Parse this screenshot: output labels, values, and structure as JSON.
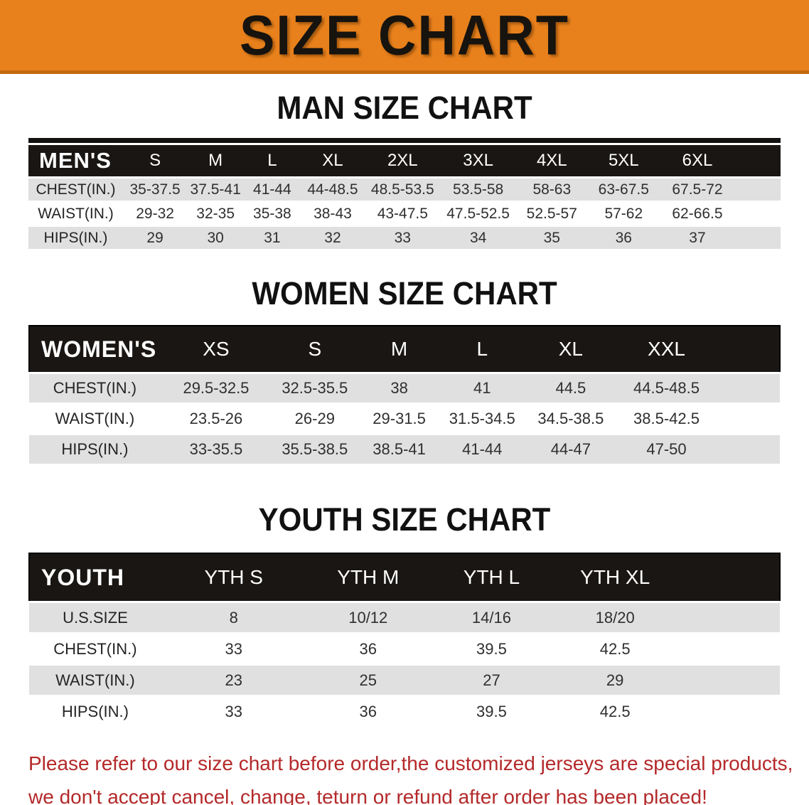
{
  "banner": {
    "title": "SIZE CHART",
    "bg_color": "#E8811C",
    "text_color": "#17130e"
  },
  "sections": [
    {
      "heading": "MAN SIZE CHART",
      "table": {
        "label": "MEN'S",
        "columns": [
          "S",
          "M",
          "L",
          "XL",
          "2XL",
          "3XL",
          "4XL",
          "5XL",
          "6XL"
        ],
        "rows": [
          {
            "label": "CHEST(IN.)",
            "values": [
              "35-37.5",
              "37.5-41",
              "41-44",
              "44-48.5",
              "48.5-53.5",
              "53.5-58",
              "58-63",
              "63-67.5",
              "67.5-72"
            ]
          },
          {
            "label": "WAIST(IN.)",
            "values": [
              "29-32",
              "32-35",
              "35-38",
              "38-43",
              "43-47.5",
              "47.5-52.5",
              "52.5-57",
              "57-62",
              "62-66.5"
            ]
          },
          {
            "label": "HIPS(IN.)",
            "values": [
              "29",
              "30",
              "31",
              "32",
              "33",
              "34",
              "35",
              "36",
              "37"
            ]
          }
        ]
      }
    },
    {
      "heading": "WOMEN SIZE CHART",
      "table": {
        "label": "WOMEN'S",
        "columns": [
          "XS",
          "S",
          "M",
          "L",
          "XL",
          "XXL"
        ],
        "rows": [
          {
            "label": "CHEST(IN.)",
            "values": [
              "29.5-32.5",
              "32.5-35.5",
              "38",
              "41",
              "44.5",
              "44.5-48.5"
            ]
          },
          {
            "label": "WAIST(IN.)",
            "values": [
              "23.5-26",
              "26-29",
              "29-31.5",
              "31.5-34.5",
              "34.5-38.5",
              "38.5-42.5"
            ]
          },
          {
            "label": "HIPS(IN.)",
            "values": [
              "33-35.5",
              "35.5-38.5",
              "38.5-41",
              "41-44",
              "44-47",
              "47-50"
            ]
          }
        ]
      }
    },
    {
      "heading": "YOUTH SIZE CHART",
      "table": {
        "label": "YOUTH",
        "columns": [
          "YTH S",
          "YTH M",
          "YTH L",
          "YTH XL"
        ],
        "rows": [
          {
            "label": "U.S.SIZE",
            "values": [
              "8",
              "10/12",
              "14/16",
              "18/20"
            ]
          },
          {
            "label": "CHEST(IN.)",
            "values": [
              "33",
              "36",
              "39.5",
              "42.5"
            ]
          },
          {
            "label": "WAIST(IN.)",
            "values": [
              "23",
              "25",
              "27",
              "29"
            ]
          },
          {
            "label": "HIPS(IN.)",
            "values": [
              "33",
              "36",
              "39.5",
              "42.5"
            ]
          }
        ]
      }
    }
  ],
  "footer": {
    "text_color": "#B4292A",
    "lines": [
      "Please refer to our size chart before order,the customized jerseys are special products,",
      "we don't accept cancel, change, teturn or refund after order has been placed!"
    ]
  }
}
